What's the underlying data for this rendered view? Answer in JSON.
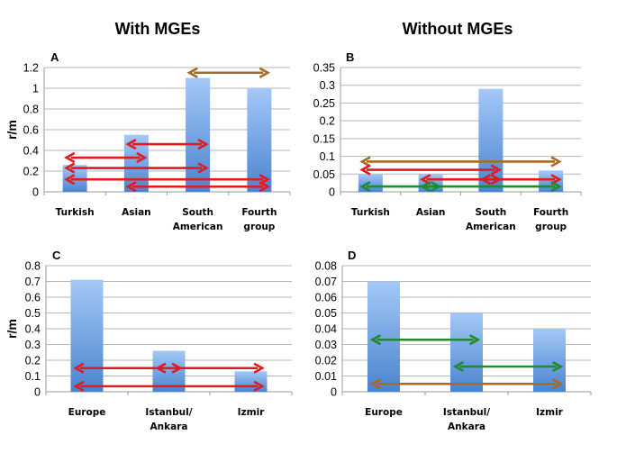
{
  "headings": {
    "left": "With MGEs",
    "right": "Without MGEs"
  },
  "colors": {
    "bar_top": "#a4c8f7",
    "bar_bottom": "#4a84cf",
    "red_arrow": "#e21a1f",
    "brown_arrow": "#a86a22",
    "green_arrow": "#1f8a2e"
  },
  "chart_data": [
    {
      "panel": "A",
      "type": "bar",
      "ylabel": "r/m",
      "ylim": [
        0,
        1.2
      ],
      "yticks": [
        "0",
        "0.2",
        "0.4",
        "0.6",
        "0.8",
        "1",
        "1.2"
      ],
      "ytick_values": [
        0,
        0.2,
        0.4,
        0.6,
        0.8,
        1,
        1.2
      ],
      "categories": [
        [
          "Turkish"
        ],
        [
          "Asian"
        ],
        [
          "South",
          "American"
        ],
        [
          "Fourth",
          "group"
        ]
      ],
      "values": [
        0.26,
        0.55,
        1.1,
        1.0
      ],
      "arrows": [
        {
          "color": "brown",
          "y": 1.15,
          "from": 2.0,
          "to": 3.0
        },
        {
          "color": "red",
          "y": 0.46,
          "from": 1.0,
          "to": 2.0
        },
        {
          "color": "red",
          "y": 0.33,
          "from": 0.0,
          "to": 1.0
        },
        {
          "color": "red",
          "y": 0.23,
          "from": 0.0,
          "to": 2.0
        },
        {
          "color": "red",
          "y": 0.12,
          "from": 0.0,
          "to": 3.0
        },
        {
          "color": "red",
          "y": 0.05,
          "from": 1.0,
          "to": 3.0
        }
      ]
    },
    {
      "panel": "B",
      "type": "bar",
      "ylabel": "",
      "ylim": [
        0,
        0.35
      ],
      "yticks": [
        "0",
        "0.05",
        "0.1",
        "0.15",
        "0.2",
        "0.25",
        "0.3",
        "0.35"
      ],
      "ytick_values": [
        0,
        0.05,
        0.1,
        0.15,
        0.2,
        0.25,
        0.3,
        0.35
      ],
      "categories": [
        [
          "Turkish"
        ],
        [
          "Asian"
        ],
        [
          "South",
          "American"
        ],
        [
          "Fourth",
          "group"
        ]
      ],
      "values": [
        0.05,
        0.05,
        0.29,
        0.06
      ],
      "arrows": [
        {
          "color": "brown",
          "y": 0.085,
          "from": 0.0,
          "to": 3.0
        },
        {
          "color": "red",
          "y": 0.062,
          "from": 0.0,
          "to": 2.0
        },
        {
          "color": "red",
          "y": 0.035,
          "from": 1.0,
          "to": 2.0
        },
        {
          "color": "red",
          "y": 0.035,
          "from": 2.0,
          "to": 3.0
        },
        {
          "color": "green",
          "y": 0.015,
          "from": 0.0,
          "to": 1.0
        },
        {
          "color": "green",
          "y": 0.015,
          "from": 1.0,
          "to": 3.0
        }
      ]
    },
    {
      "panel": "C",
      "type": "bar",
      "ylabel": "r/m",
      "ylim": [
        0,
        0.8
      ],
      "yticks": [
        "0",
        "0.1",
        "0.2",
        "0.3",
        "0.4",
        "0.5",
        "0.6",
        "0.7",
        "0.8"
      ],
      "ytick_values": [
        0,
        0.1,
        0.2,
        0.3,
        0.4,
        0.5,
        0.6,
        0.7,
        0.8
      ],
      "categories": [
        [
          "Europe"
        ],
        [
          "Istanbul/",
          "Ankara"
        ],
        [
          "Izmir"
        ]
      ],
      "values": [
        0.71,
        0.26,
        0.13
      ],
      "arrows": [
        {
          "color": "red",
          "y": 0.15,
          "from": 0.0,
          "to": 1.0
        },
        {
          "color": "red",
          "y": 0.15,
          "from": 1.0,
          "to": 2.0
        },
        {
          "color": "red",
          "y": 0.035,
          "from": 0.0,
          "to": 2.0
        }
      ]
    },
    {
      "panel": "D",
      "type": "bar",
      "ylabel": "",
      "ylim": [
        0,
        0.08
      ],
      "yticks": [
        "0",
        "0.01",
        "0.02",
        "0.03",
        "0.04",
        "0.05",
        "0.06",
        "0.07",
        "0.08"
      ],
      "ytick_values": [
        0,
        0.01,
        0.02,
        0.03,
        0.04,
        0.05,
        0.06,
        0.07,
        0.08
      ],
      "categories": [
        [
          "Europe"
        ],
        [
          "Istanbul/",
          "Ankara"
        ],
        [
          "Izmir"
        ]
      ],
      "values": [
        0.07,
        0.05,
        0.04
      ],
      "arrows": [
        {
          "color": "green",
          "y": 0.033,
          "from": 0.0,
          "to": 1.0
        },
        {
          "color": "green",
          "y": 0.016,
          "from": 1.0,
          "to": 2.0
        },
        {
          "color": "brown",
          "y": 0.005,
          "from": 0.0,
          "to": 2.0
        }
      ]
    }
  ]
}
